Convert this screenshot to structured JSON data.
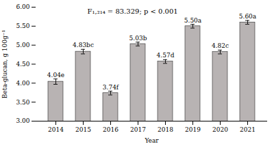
{
  "chart_data": {
    "type": "bar",
    "categories": [
      "2014",
      "2015",
      "2016",
      "2017",
      "2018",
      "2019",
      "2020",
      "2021"
    ],
    "values": [
      4.04,
      4.83,
      3.74,
      5.03,
      4.57,
      5.5,
      4.82,
      5.6
    ],
    "errors": [
      0.07,
      0.06,
      0.05,
      0.05,
      0.05,
      0.05,
      0.05,
      0.05
    ],
    "value_labels": [
      "4.04e",
      "4.83bc",
      "3.74f",
      "5.03b",
      "4.57d",
      "5.50a",
      "4.82c",
      "5.60a"
    ],
    "color": "#b8b3b3",
    "xlabel": "Year",
    "ylabel": "Beta-glucan, g 100g⁻¹",
    "annotation": "F₁,₂₁₄ = 83.329; p < 0.001",
    "ylim": [
      3.0,
      6.0
    ],
    "yticks": [
      {
        "value": 3.0,
        "label": "3.00"
      },
      {
        "value": 3.5,
        "label": "3.50"
      },
      {
        "value": 4.0,
        "label": "4.00"
      },
      {
        "value": 4.5,
        "label": "4.50"
      },
      {
        "value": 5.0,
        "label": "5.00"
      },
      {
        "value": 5.5,
        "label": "5.50"
      },
      {
        "value": 6.0,
        "label": "6.00"
      }
    ]
  }
}
